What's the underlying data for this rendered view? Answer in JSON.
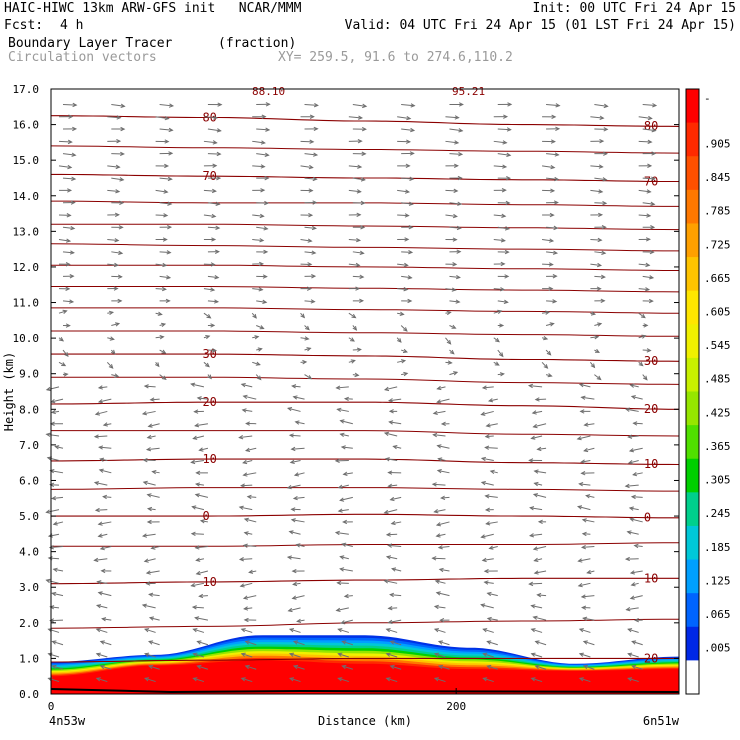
{
  "header": {
    "line1_left": "HAIC-HIWC 13km ARW-GFS init   NCAR/MMM",
    "line1_right": "Init: 00 UTC Fri 24 Apr 15",
    "fcst_label": "Fcst:",
    "fcst_value": "4 h",
    "valid": "Valid: 04 UTC Fri 24 Apr 15 (01 LST Fri 24 Apr 15)",
    "field_name": "Boundary Layer Tracer",
    "field_units": "(fraction)",
    "vectors_label": "Circulation vectors",
    "xy_label": "XY= 259.5, 91.6 to 274.6,110.2"
  },
  "colorbar": {
    "labels": [
      "-",
      ".905",
      ".845",
      ".785",
      ".725",
      ".665",
      ".605",
      ".545",
      ".485",
      ".425",
      ".365",
      ".305",
      ".245",
      ".185",
      ".125",
      ".065",
      ".005"
    ],
    "colors": [
      "#ff0000",
      "#ff2a00",
      "#ff5000",
      "#ff7800",
      "#ffa000",
      "#ffc400",
      "#ffe600",
      "#f0f000",
      "#c8f000",
      "#96e600",
      "#50e000",
      "#00d000",
      "#00d08c",
      "#00c8d8",
      "#00a0ff",
      "#0064ff",
      "#0028e6",
      "#ffffff"
    ]
  },
  "chart_data": {
    "type": "heatmap",
    "ylabel": "Height (km)",
    "xlabel": "Distance (km)",
    "ylim": [
      0.0,
      17.0
    ],
    "yticks": [
      "0.0",
      "1.0",
      "2.0",
      "3.0",
      "4.0",
      "5.0",
      "6.0",
      "7.0",
      "8.0",
      "9.0",
      "10.0",
      "11.0",
      "12.0",
      "13.0",
      "14.0",
      "15.0",
      "16.0",
      "17.0"
    ],
    "xlim": [
      0,
      310
    ],
    "xticks": [
      {
        "value": 0,
        "label": "0"
      },
      {
        "value": 200,
        "label": "200"
      }
    ],
    "x_left_label": "4n53w",
    "x_right_label": "6n51w",
    "temperature_contours": [
      {
        "label": "80",
        "height": [
          16.25,
          16.2,
          16.1,
          16.0,
          15.95
        ]
      },
      {
        "label": "70",
        "height": [
          14.6,
          14.55,
          14.5,
          14.45,
          14.4
        ]
      },
      {
        "label": "30",
        "height": [
          9.55,
          9.55,
          9.5,
          9.4,
          9.35
        ]
      },
      {
        "label": "20",
        "height": [
          8.15,
          8.2,
          8.2,
          8.1,
          8.0
        ]
      },
      {
        "label": "10",
        "height": [
          6.55,
          6.6,
          6.6,
          6.5,
          6.45
        ]
      },
      {
        "label": "0",
        "height": [
          5.0,
          5.0,
          5.05,
          5.0,
          4.95
        ]
      },
      {
        "label": "10",
        "height": [
          3.1,
          3.15,
          3.2,
          3.25,
          3.25
        ]
      },
      {
        "label": "20",
        "height": [
          0.9,
          0.95,
          1.0,
          1.0,
          1.0
        ]
      }
    ],
    "partial_top_labels": [
      "88.10",
      "95.21"
    ],
    "tracer_top_height": [
      0.9,
      1.1,
      1.65,
      1.65,
      1.3,
      0.85,
      1.05
    ],
    "tracer_red_top_height": [
      0.5,
      0.8,
      0.95,
      0.85,
      0.7,
      0.65,
      0.7
    ]
  }
}
